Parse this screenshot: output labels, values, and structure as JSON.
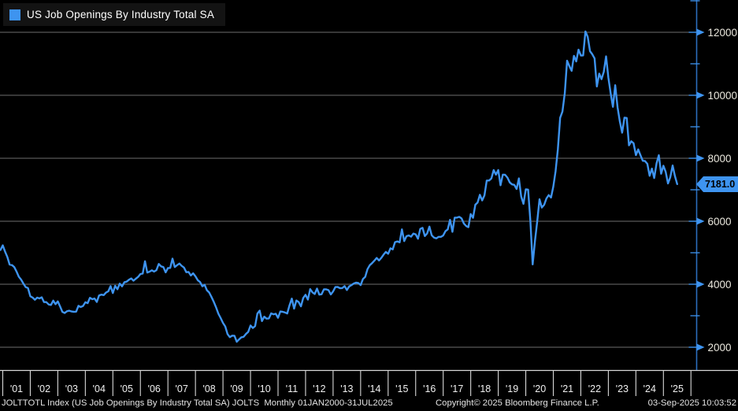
{
  "legend": {
    "label": "US Job Openings By Industry Total SA"
  },
  "last_value": {
    "label": "7181.0",
    "value": 7181.0
  },
  "footer": {
    "left": "JOLTTOTL Index (US Job Openings By Industry Total SA) JOLTS  Monthly 01JAN2000-31JUL2025",
    "center": "Copyright© 2025 Bloomberg Finance L.P.",
    "right": "03-Sep-2025 10:03:52"
  },
  "chart_data": {
    "type": "line",
    "title": "US Job Openings By Industry Total SA",
    "ticker": "JOLTTOTL Index",
    "source": "JOLTS",
    "frequency": "Monthly",
    "date_range": "01JAN2000-31JUL2025",
    "x_first_point": "Dec 2000",
    "x_last_point": "Jul 2025",
    "x_tick_labels": [
      "'01",
      "'02",
      "'03",
      "'04",
      "'05",
      "'06",
      "'07",
      "'08",
      "'09",
      "'10",
      "'11",
      "'12",
      "'13",
      "'14",
      "'15",
      "'16",
      "'17",
      "'18",
      "'19",
      "'20",
      "'21",
      "'22",
      "'23",
      "'24",
      "'25"
    ],
    "yticks": [
      2000,
      4000,
      6000,
      8000,
      10000,
      12000
    ],
    "minor_yticks": [
      3000,
      5000,
      7000,
      9000,
      11000,
      13000
    ],
    "ylim": [
      1275,
      13025
    ],
    "grid": true,
    "legend_position": "top-left",
    "last_value": 7181.0,
    "line_color": "#3e94f0",
    "axis_color": "#2c6fbe",
    "grid_color": "#6e6e6e",
    "frame_color": "#d8d8d8",
    "y_label_color": "#eae7dd",
    "x_label_color": "#f0f0f0",
    "monthly_values": [
      5088,
      5234,
      5037,
      4868,
      4626,
      4607,
      4545,
      4402,
      4238,
      4148,
      4022,
      3909,
      3879,
      3618,
      3577,
      3507,
      3575,
      3550,
      3586,
      3432,
      3433,
      3357,
      3342,
      3480,
      3365,
      3455,
      3296,
      3122,
      3087,
      3142,
      3161,
      3135,
      3124,
      3131,
      3315,
      3278,
      3309,
      3427,
      3399,
      3569,
      3525,
      3547,
      3438,
      3644,
      3671,
      3654,
      3736,
      3776,
      3940,
      3721,
      3950,
      3840,
      4020,
      3933,
      4066,
      4082,
      4142,
      4186,
      4113,
      4174,
      4232,
      4325,
      4337,
      4731,
      4371,
      4399,
      4442,
      4402,
      4448,
      4646,
      4568,
      4546,
      4378,
      4514,
      4518,
      4813,
      4546,
      4606,
      4657,
      4583,
      4530,
      4383,
      4391,
      4277,
      4347,
      4249,
      4128,
      4070,
      3935,
      3982,
      3810,
      3737,
      3594,
      3442,
      3261,
      3063,
      2924,
      2773,
      2661,
      2418,
      2321,
      2368,
      2363,
      2173,
      2248,
      2316,
      2331,
      2421,
      2484,
      2691,
      2611,
      2671,
      3069,
      3162,
      2830,
      2969,
      2908,
      2916,
      3075,
      3044,
      3063,
      2934,
      3134,
      3126,
      3106,
      3073,
      3332,
      3544,
      3224,
      3484,
      3435,
      3297,
      3564,
      3664,
      3513,
      3844,
      3743,
      3690,
      3862,
      3670,
      3682,
      3839,
      3837,
      3812,
      3676,
      3771,
      3911,
      3913,
      3876,
      3877,
      3940,
      3817,
      3931,
      3972,
      4023,
      4049,
      4039,
      3972,
      4166,
      4236,
      4479,
      4606,
      4669,
      4748,
      4835,
      4756,
      4836,
      4940,
      5028,
      4964,
      5141,
      5107,
      5334,
      5359,
      5329,
      5743,
      5370,
      5525,
      5550,
      5510,
      5607,
      5583,
      5445,
      5757,
      5789,
      5530,
      5612,
      5831,
      5554,
      5480,
      5458,
      5505,
      5505,
      5547,
      5685,
      5743,
      6044,
      5666,
      6116,
      6116,
      6140,
      6089,
      5930,
      5851,
      5812,
      6228,
      6110,
      6526,
      6595,
      6840,
      6662,
      6822,
      7293,
      7293,
      7361,
      7626,
      7479,
      7625,
      7142,
      7480,
      7474,
      7384,
      7233,
      7170,
      7154,
      7024,
      7361,
      6787,
      6552,
      7012,
      7004,
      6004,
      4630,
      5371,
      6001,
      6697,
      6435,
      6523,
      6726,
      6830,
      6752,
      7099,
      7590,
      8287,
      9286,
      9483,
      10073,
      11098,
      10925,
      10775,
      11253,
      11075,
      11448,
      11263,
      11266,
      12027,
      11855,
      11400,
      11303,
      11170,
      10280,
      10687,
      10512,
      10746,
      11234,
      10563,
      10067,
      9633,
      10320,
      9616,
      9165,
      8813,
      9288,
      9280,
      8409,
      8539,
      8478,
      8100,
      8280,
      8094,
      7919,
      7910,
      7822,
      7443,
      7673,
      7372,
      7839,
      8098,
      7508,
      7762,
      7568,
      7200,
      7395,
      7769,
      7437,
      7181
    ]
  }
}
